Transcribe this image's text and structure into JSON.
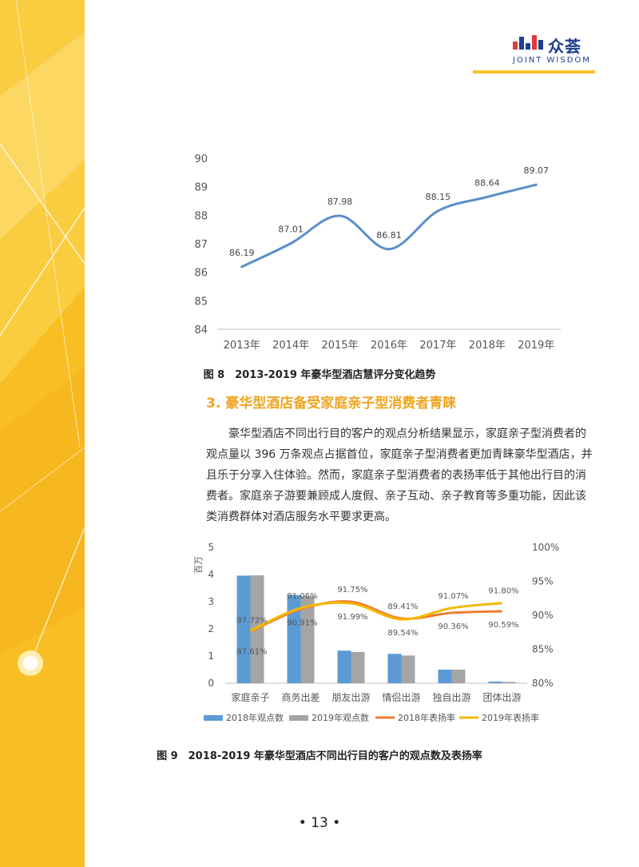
{
  "logo": {
    "cn": "众荟",
    "en": "JOINT WISDOM"
  },
  "chart8": {
    "type": "line",
    "categories": [
      "2013年",
      "2014年",
      "2015年",
      "2016年",
      "2017年",
      "2018年",
      "2019年"
    ],
    "values": [
      86.19,
      87.01,
      87.98,
      86.81,
      88.15,
      88.64,
      89.07
    ],
    "value_labels": [
      "86.19",
      "87.01",
      "87.98",
      "86.81",
      "88.15",
      "88.64",
      "89.07"
    ],
    "ylim": [
      84,
      90
    ],
    "yticks": [
      "84",
      "85",
      "86",
      "87",
      "88",
      "89",
      "90"
    ],
    "color": "#5b8fcc"
  },
  "caption8": "图 8　2013-2019 年豪华型酒店慧评分变化趋势",
  "section_heading": "3. 豪华型酒店备受家庭亲子型消费者青睐",
  "paragraph": "豪华型酒店不同出行目的客户的观点分析结果显示，家庭亲子型消费者的观点量以 396 万条观点占据首位，家庭亲子型消费者更加青睐豪华型酒店，并且乐于分享入住体验。然而，家庭亲子型消费者的表扬率低于其他出行目的消费者。家庭亲子游要兼顾成人度假、亲子互动、亲子教育等多重功能，因此该类消费群体对酒店服务水平要求更高。",
  "chart9": {
    "type": "bar",
    "ylabel": "百万",
    "yticks_left": [
      "0",
      "1",
      "2",
      "3",
      "4",
      "5"
    ],
    "yticks_right": [
      "80%",
      "85%",
      "90%",
      "95%",
      "100%"
    ],
    "ylim_left": [
      0,
      5
    ],
    "ylim_right": [
      80,
      100
    ],
    "categories": [
      "家庭亲子",
      "商务出差",
      "朋友出游",
      "情侣出游",
      "独自出游",
      "团体出游"
    ],
    "series": [
      {
        "name": "2018年观点数",
        "values": [
          3.96,
          3.25,
          1.2,
          1.08,
          0.5,
          0.06
        ],
        "color": "#5b9bd5"
      },
      {
        "name": "2019年观点数",
        "values": [
          3.97,
          3.2,
          1.15,
          1.02,
          0.5,
          0.05
        ],
        "color": "#a5a5a5"
      },
      {
        "name": "2018年表扬率",
        "values": [
          87.61,
          90.91,
          91.99,
          89.54,
          90.36,
          90.59
        ],
        "labels": [
          "87.61%",
          "90.91%",
          "91.99%",
          "89.54%",
          "90.36%",
          "90.59%"
        ],
        "color": "#ed7d31"
      },
      {
        "name": "2019年表扬率",
        "values": [
          87.72,
          91.06,
          91.75,
          89.41,
          91.07,
          91.8
        ],
        "labels": [
          "87.72%",
          "91.06%",
          "91.75%",
          "89.41%",
          "91.07%",
          "91.80%"
        ],
        "color": "#f5b800"
      }
    ]
  },
  "caption9": "图 9　2018-2019 年豪华型酒店不同出行目的客户的观点数及表扬率",
  "page_number": "• 13 •"
}
